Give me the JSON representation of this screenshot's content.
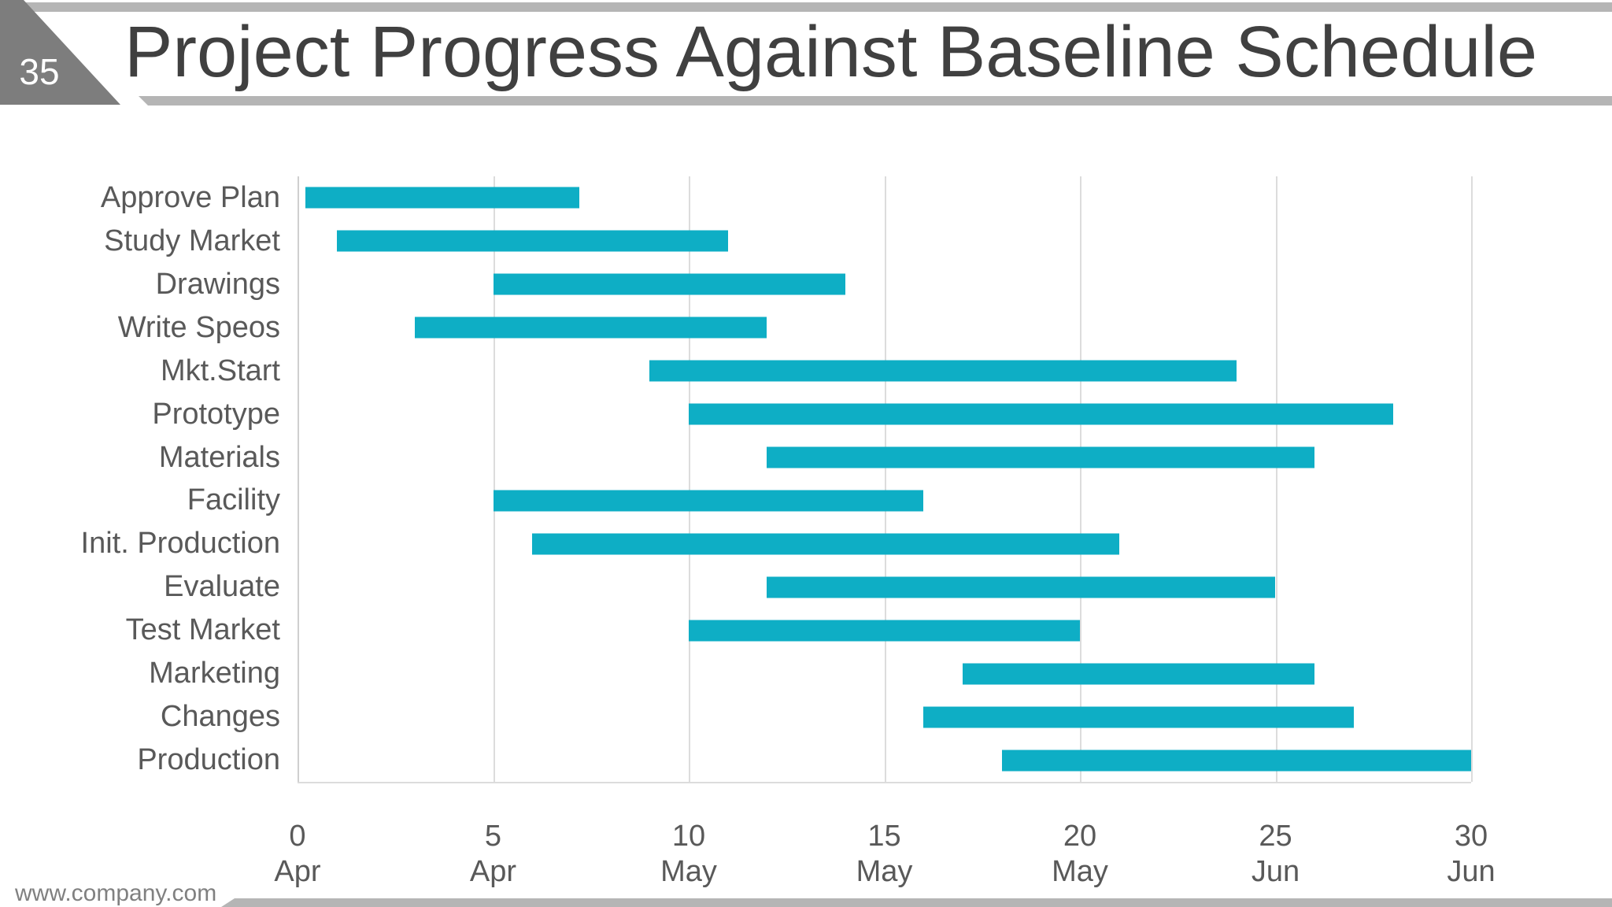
{
  "slide": {
    "number": "35",
    "title": "Project Progress Against Baseline Schedule",
    "footer_url": "www.company.com"
  },
  "colors": {
    "bar": "#0EAEC5",
    "accent_bar": "#b5b5b5",
    "corner_triangle": "#7d7d7d",
    "gridline": "#dcdcdc",
    "axis_line": "#cfcfcf",
    "label_text": "#595959",
    "title_text": "#404040",
    "footer_text": "#808080"
  },
  "chart_data": {
    "type": "bar",
    "orientation": "horizontal",
    "title": "",
    "grid": true,
    "legend": false,
    "x_axis": {
      "min": 0,
      "max": 30,
      "ticks": [
        {
          "value": 0,
          "line1": "0",
          "line2": "Apr"
        },
        {
          "value": 5,
          "line1": "5",
          "line2": "Apr"
        },
        {
          "value": 10,
          "line1": "10",
          "line2": "May"
        },
        {
          "value": 15,
          "line1": "15",
          "line2": "May"
        },
        {
          "value": 20,
          "line1": "20",
          "line2": "May"
        },
        {
          "value": 25,
          "line1": "25",
          "line2": "Jun"
        },
        {
          "value": 30,
          "line1": "30",
          "line2": "Jun"
        }
      ]
    },
    "bars": [
      {
        "label": "Approve Plan",
        "start": 0.2,
        "end": 7.2
      },
      {
        "label": "Study Market",
        "start": 1,
        "end": 11
      },
      {
        "label": "Drawings",
        "start": 5,
        "end": 14
      },
      {
        "label": "Write Speos",
        "start": 3,
        "end": 12
      },
      {
        "label": "Mkt.Start",
        "start": 9,
        "end": 24
      },
      {
        "label": "Prototype",
        "start": 10,
        "end": 28
      },
      {
        "label": "Materials",
        "start": 12,
        "end": 26
      },
      {
        "label": "Facility",
        "start": 5,
        "end": 16
      },
      {
        "label": "Init. Production",
        "start": 6,
        "end": 21
      },
      {
        "label": "Evaluate",
        "start": 12,
        "end": 25
      },
      {
        "label": "Test Market",
        "start": 10,
        "end": 20
      },
      {
        "label": "Marketing",
        "start": 17,
        "end": 26
      },
      {
        "label": "Changes",
        "start": 16,
        "end": 27
      },
      {
        "label": "Production",
        "start": 18,
        "end": 30
      }
    ]
  }
}
